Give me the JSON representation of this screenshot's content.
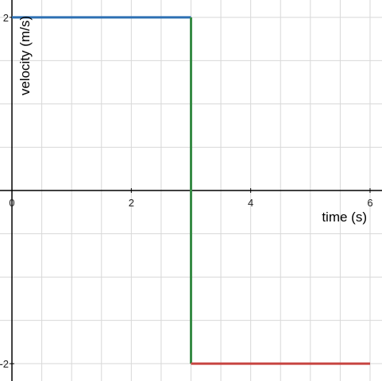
{
  "chart_data": {
    "type": "line",
    "xlabel": "time (s)",
    "ylabel": "velocity (m/s)",
    "xlim": [
      -0.2,
      6.2
    ],
    "ylim": [
      -2.2,
      2.2
    ],
    "xticks": [
      0,
      2,
      4,
      6
    ],
    "yticks": [
      -2,
      2
    ],
    "xgrid": [
      0.5,
      1,
      1.5,
      2,
      2.5,
      3,
      3.5,
      4,
      4.5,
      5,
      5.5,
      6
    ],
    "ygrid": [
      -2,
      -1.5,
      -1,
      -0.5,
      0.5,
      1,
      1.5,
      2
    ],
    "series": [
      {
        "color": "#2d70b3",
        "x": [
          0,
          3
        ],
        "values": [
          2,
          2
        ]
      },
      {
        "color": "#388c46",
        "x": [
          3,
          3
        ],
        "values": [
          2,
          -2
        ]
      },
      {
        "color": "#c74440",
        "x": [
          3,
          6
        ],
        "values": [
          -2,
          -2
        ]
      }
    ]
  }
}
